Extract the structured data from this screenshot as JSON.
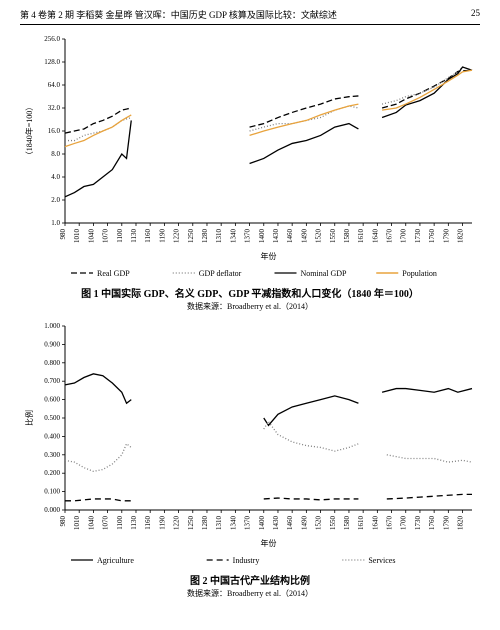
{
  "page": {
    "running_head_left": "第 4 卷第 2 期    李稻葵    金星晔    管汉晖：中国历史 GDP 核算及国际比较：文献综述",
    "page_number": "25"
  },
  "fig1": {
    "caption": "图 1    中国实际 GDP、名义 GDP、GDP 平减指数和人口变化（1840 年＝100）",
    "source": "数据来源：Broadberry et al.（2014）",
    "type": "line",
    "x_label": "年份",
    "y_label": "（1840年=100）",
    "x_ticks": [
      980,
      1010,
      1040,
      1070,
      1100,
      1130,
      1160,
      1190,
      1220,
      1250,
      1280,
      1310,
      1340,
      1370,
      1400,
      1430,
      1460,
      1490,
      1520,
      1550,
      1580,
      1610,
      1640,
      1670,
      1700,
      1730,
      1760,
      1790,
      1820
    ],
    "y_ticks": [
      1,
      2,
      4,
      8,
      16,
      32,
      64,
      128,
      256
    ],
    "y_tick_labels": [
      "1.0",
      "2.0",
      "4.0",
      "8.0",
      "16.0",
      "32.0",
      "64.0",
      "128.0",
      "256.0"
    ],
    "y_scale": "log2",
    "xlim": [
      980,
      1840
    ],
    "ylim": [
      1,
      256
    ],
    "plot_bg": "#ffffff",
    "axis_color": "#000000",
    "series": [
      {
        "name": "Real GDP",
        "legend": "Real GDP",
        "color": "#000000",
        "dash": "6,3",
        "width": 1.3,
        "segments": [
          [
            [
              980,
              15
            ],
            [
              1000,
              16
            ],
            [
              1020,
              17
            ],
            [
              1040,
              20
            ],
            [
              1060,
              22
            ],
            [
              1080,
              25
            ],
            [
              1100,
              30
            ],
            [
              1120,
              32
            ]
          ],
          [
            [
              1370,
              18
            ],
            [
              1400,
              20
            ],
            [
              1430,
              24
            ],
            [
              1460,
              28
            ],
            [
              1490,
              32
            ],
            [
              1520,
              36
            ],
            [
              1550,
              42
            ],
            [
              1580,
              45
            ],
            [
              1600,
              46
            ]
          ],
          [
            [
              1650,
              32
            ],
            [
              1680,
              36
            ],
            [
              1700,
              42
            ],
            [
              1730,
              50
            ],
            [
              1760,
              62
            ],
            [
              1790,
              78
            ],
            [
              1810,
              96
            ],
            [
              1820,
              98
            ],
            [
              1840,
              100
            ]
          ]
        ]
      },
      {
        "name": "GDP deflator",
        "legend": "GDP deflator",
        "color": "#808080",
        "dash": "1,2",
        "width": 1.3,
        "segments": [
          [
            [
              980,
              12
            ],
            [
              1000,
              12
            ],
            [
              1020,
              14
            ],
            [
              1040,
              15
            ],
            [
              1060,
              16
            ],
            [
              1080,
              18
            ],
            [
              1100,
              22
            ],
            [
              1120,
              24
            ]
          ],
          [
            [
              1370,
              16
            ],
            [
              1400,
              18
            ],
            [
              1430,
              20
            ],
            [
              1460,
              20
            ],
            [
              1490,
              22
            ],
            [
              1520,
              24
            ],
            [
              1550,
              30
            ],
            [
              1580,
              34
            ],
            [
              1600,
              32
            ]
          ],
          [
            [
              1650,
              36
            ],
            [
              1680,
              40
            ],
            [
              1700,
              45
            ],
            [
              1730,
              50
            ],
            [
              1760,
              60
            ],
            [
              1790,
              80
            ],
            [
              1810,
              95
            ],
            [
              1820,
              110
            ],
            [
              1840,
              100
            ]
          ]
        ]
      },
      {
        "name": "Nominal GDP",
        "legend": "Nominal GDP",
        "color": "#000000",
        "dash": "",
        "width": 1.3,
        "segments": [
          [
            [
              980,
              2.2
            ],
            [
              1000,
              2.5
            ],
            [
              1020,
              3
            ],
            [
              1040,
              3.2
            ],
            [
              1060,
              4
            ],
            [
              1080,
              5
            ],
            [
              1100,
              8
            ],
            [
              1110,
              7
            ],
            [
              1120,
              22
            ]
          ],
          [
            [
              1370,
              6
            ],
            [
              1400,
              7
            ],
            [
              1430,
              9
            ],
            [
              1460,
              11
            ],
            [
              1490,
              12
            ],
            [
              1520,
              14
            ],
            [
              1550,
              18
            ],
            [
              1580,
              20
            ],
            [
              1600,
              17
            ]
          ],
          [
            [
              1650,
              24
            ],
            [
              1680,
              28
            ],
            [
              1700,
              35
            ],
            [
              1730,
              40
            ],
            [
              1760,
              50
            ],
            [
              1790,
              76
            ],
            [
              1810,
              90
            ],
            [
              1820,
              110
            ],
            [
              1840,
              100
            ]
          ]
        ]
      },
      {
        "name": "Population",
        "legend": "Population",
        "color": "#e8a33d",
        "dash": "",
        "width": 1.5,
        "segments": [
          [
            [
              980,
              10
            ],
            [
              1000,
              11
            ],
            [
              1020,
              12
            ],
            [
              1040,
              14
            ],
            [
              1060,
              16
            ],
            [
              1080,
              18
            ],
            [
              1100,
              22
            ],
            [
              1120,
              26
            ]
          ],
          [
            [
              1370,
              14
            ],
            [
              1400,
              16
            ],
            [
              1430,
              18
            ],
            [
              1460,
              20
            ],
            [
              1490,
              22
            ],
            [
              1520,
              26
            ],
            [
              1550,
              30
            ],
            [
              1580,
              34
            ],
            [
              1600,
              36
            ]
          ],
          [
            [
              1650,
              30
            ],
            [
              1680,
              32
            ],
            [
              1700,
              36
            ],
            [
              1730,
              44
            ],
            [
              1760,
              56
            ],
            [
              1790,
              72
            ],
            [
              1810,
              86
            ],
            [
              1820,
              95
            ],
            [
              1840,
              100
            ]
          ]
        ]
      }
    ],
    "legend_order": [
      "Real GDP",
      "GDP deflator",
      "Nominal GDP",
      "Population"
    ]
  },
  "fig2": {
    "caption": "图 2    中国古代产业结构比例",
    "source": "数据来源：Broadberry et al.（2014）",
    "type": "line",
    "x_label": "年份",
    "y_label": "比例",
    "x_ticks": [
      980,
      1010,
      1040,
      1070,
      1100,
      1130,
      1160,
      1190,
      1220,
      1250,
      1280,
      1310,
      1340,
      1370,
      1400,
      1430,
      1460,
      1490,
      1520,
      1550,
      1580,
      1610,
      1640,
      1670,
      1700,
      1730,
      1760,
      1790,
      1820
    ],
    "y_ticks": [
      0,
      0.1,
      0.2,
      0.3,
      0.4,
      0.5,
      0.6,
      0.7,
      0.8,
      0.9,
      1.0
    ],
    "y_tick_labels": [
      "0.000",
      "0.100",
      "0.200",
      "0.300",
      "0.400",
      "0.500",
      "0.600",
      "0.700",
      "0.800",
      "0.900",
      "1.000"
    ],
    "y_scale": "linear",
    "xlim": [
      980,
      1840
    ],
    "ylim": [
      0,
      1.0
    ],
    "plot_bg": "#ffffff",
    "axis_color": "#000000",
    "series": [
      {
        "name": "Agriculture",
        "legend": "Agriculture",
        "color": "#000000",
        "dash": "",
        "width": 1.3,
        "segments": [
          [
            [
              980,
              0.68
            ],
            [
              1000,
              0.69
            ],
            [
              1020,
              0.72
            ],
            [
              1040,
              0.74
            ],
            [
              1060,
              0.73
            ],
            [
              1080,
              0.69
            ],
            [
              1100,
              0.64
            ],
            [
              1110,
              0.58
            ],
            [
              1120,
              0.6
            ]
          ],
          [
            [
              1400,
              0.5
            ],
            [
              1410,
              0.46
            ],
            [
              1430,
              0.52
            ],
            [
              1460,
              0.56
            ],
            [
              1490,
              0.58
            ],
            [
              1520,
              0.6
            ],
            [
              1550,
              0.62
            ],
            [
              1580,
              0.6
            ],
            [
              1600,
              0.58
            ]
          ],
          [
            [
              1650,
              0.64
            ],
            [
              1680,
              0.66
            ],
            [
              1700,
              0.66
            ],
            [
              1730,
              0.65
            ],
            [
              1760,
              0.64
            ],
            [
              1790,
              0.66
            ],
            [
              1810,
              0.64
            ],
            [
              1840,
              0.66
            ]
          ]
        ]
      },
      {
        "name": "Industry",
        "legend": "Industry",
        "color": "#000000",
        "dash": "6,4",
        "width": 1.3,
        "segments": [
          [
            [
              980,
              0.05
            ],
            [
              1000,
              0.05
            ],
            [
              1020,
              0.055
            ],
            [
              1040,
              0.06
            ],
            [
              1060,
              0.06
            ],
            [
              1080,
              0.06
            ],
            [
              1100,
              0.05
            ],
            [
              1120,
              0.05
            ]
          ],
          [
            [
              1400,
              0.06
            ],
            [
              1430,
              0.065
            ],
            [
              1460,
              0.06
            ],
            [
              1490,
              0.06
            ],
            [
              1520,
              0.055
            ],
            [
              1550,
              0.06
            ],
            [
              1580,
              0.06
            ],
            [
              1600,
              0.06
            ]
          ],
          [
            [
              1660,
              0.06
            ],
            [
              1700,
              0.065
            ],
            [
              1730,
              0.07
            ],
            [
              1760,
              0.075
            ],
            [
              1790,
              0.08
            ],
            [
              1820,
              0.085
            ],
            [
              1840,
              0.085
            ]
          ]
        ]
      },
      {
        "name": "Services",
        "legend": "Services",
        "color": "#808080",
        "dash": "1,2",
        "width": 1.3,
        "segments": [
          [
            [
              980,
              0.27
            ],
            [
              1000,
              0.26
            ],
            [
              1020,
              0.23
            ],
            [
              1040,
              0.21
            ],
            [
              1060,
              0.22
            ],
            [
              1080,
              0.25
            ],
            [
              1100,
              0.3
            ],
            [
              1110,
              0.36
            ],
            [
              1120,
              0.34
            ]
          ],
          [
            [
              1400,
              0.44
            ],
            [
              1410,
              0.48
            ],
            [
              1430,
              0.41
            ],
            [
              1460,
              0.37
            ],
            [
              1490,
              0.35
            ],
            [
              1520,
              0.34
            ],
            [
              1550,
              0.32
            ],
            [
              1580,
              0.34
            ],
            [
              1600,
              0.36
            ]
          ],
          [
            [
              1660,
              0.3
            ],
            [
              1700,
              0.28
            ],
            [
              1730,
              0.28
            ],
            [
              1760,
              0.28
            ],
            [
              1790,
              0.26
            ],
            [
              1820,
              0.27
            ],
            [
              1840,
              0.26
            ]
          ]
        ]
      }
    ],
    "legend_order": [
      "Agriculture",
      "Industry",
      "Services"
    ]
  }
}
